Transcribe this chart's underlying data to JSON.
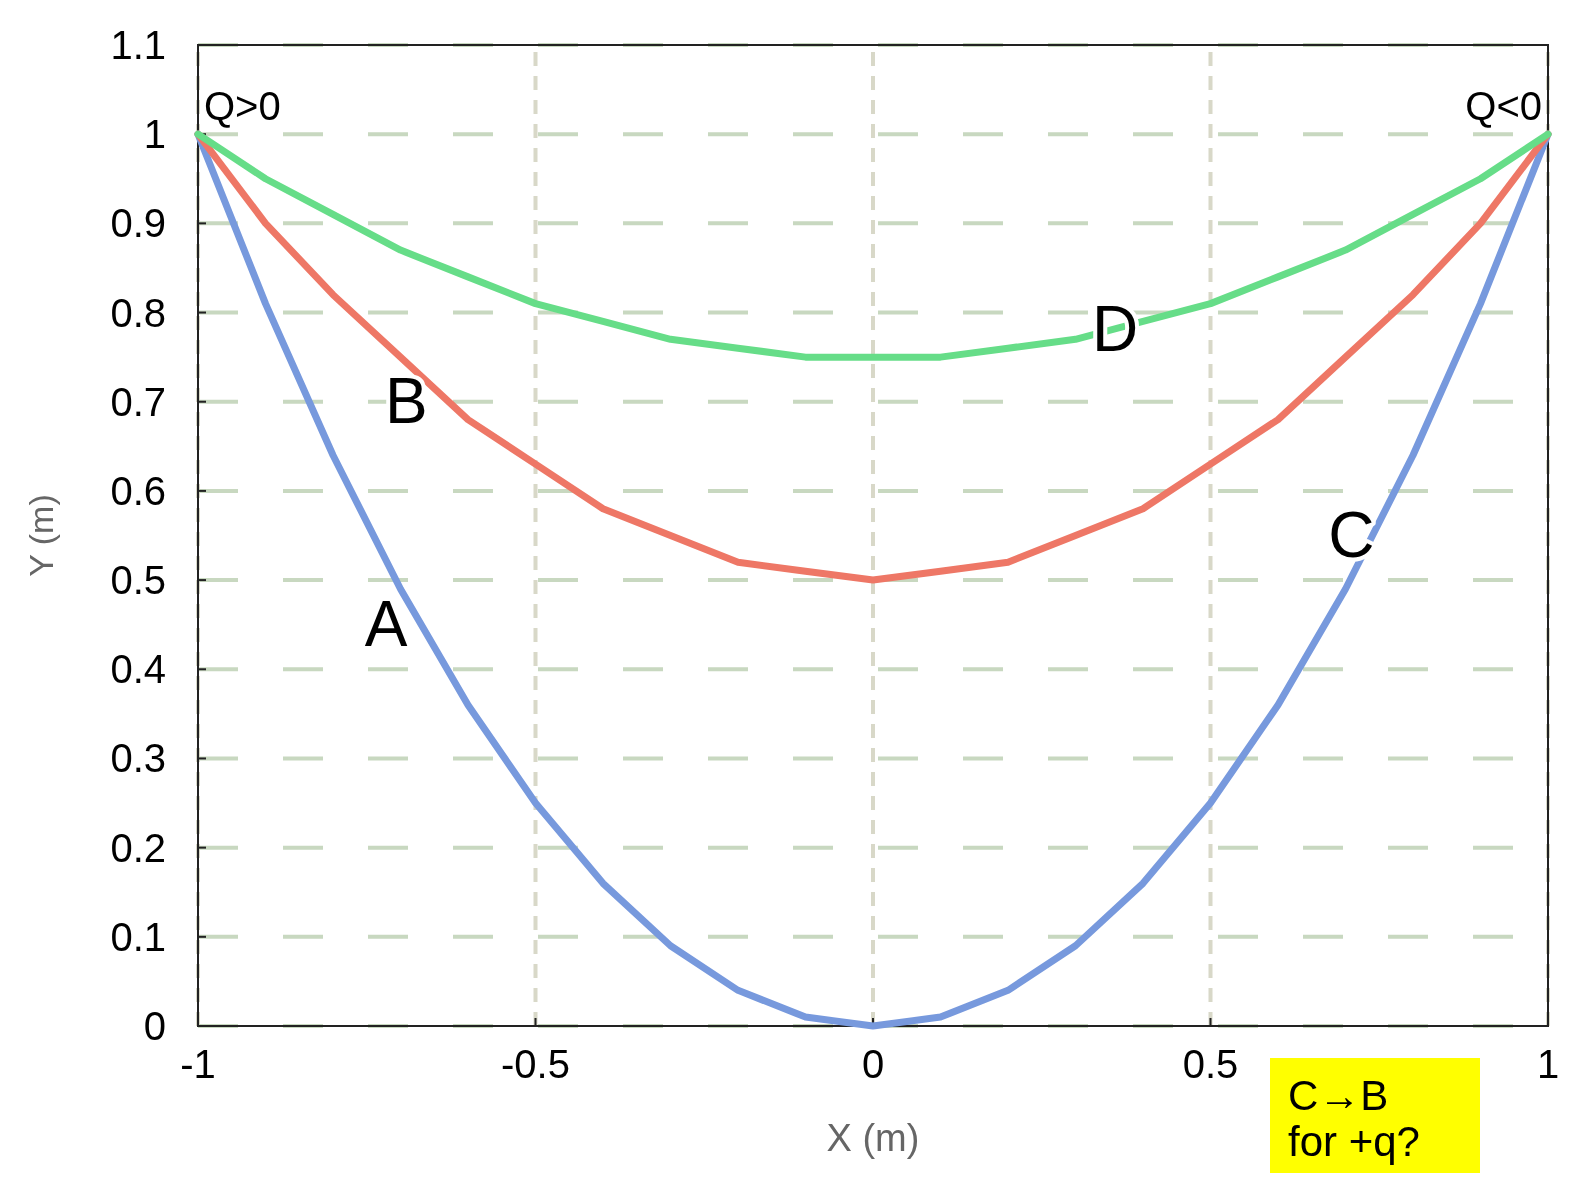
{
  "chart_data": {
    "type": "line",
    "xlabel": "X (m)",
    "ylabel": "Y (m)",
    "x": [
      -1,
      -0.9,
      -0.8,
      -0.7,
      -0.6,
      -0.5,
      -0.4,
      -0.3,
      -0.2,
      -0.1,
      0,
      0.1,
      0.2,
      0.3,
      0.4,
      0.5,
      0.6,
      0.7,
      0.8,
      0.9,
      1
    ],
    "series": [
      {
        "color": "#7799dd",
        "values": [
          1,
          0.81,
          0.64,
          0.49,
          0.36,
          0.25,
          0.16,
          0.09,
          0.04,
          0.01,
          0,
          0.01,
          0.04,
          0.09,
          0.16,
          0.25,
          0.36,
          0.49,
          0.64,
          0.81,
          1
        ]
      },
      {
        "color": "#ee7766",
        "values": [
          1,
          0.9,
          0.82,
          0.75,
          0.68,
          0.63,
          0.58,
          0.55,
          0.52,
          0.51,
          0.5,
          0.51,
          0.52,
          0.55,
          0.58,
          0.63,
          0.68,
          0.75,
          0.82,
          0.9,
          1
        ]
      },
      {
        "color": "#66dd88",
        "values": [
          1,
          0.95,
          0.91,
          0.87,
          0.84,
          0.81,
          0.79,
          0.77,
          0.76,
          0.75,
          0.75,
          0.75,
          0.76,
          0.77,
          0.79,
          0.81,
          0.84,
          0.87,
          0.91,
          0.95,
          1
        ]
      }
    ],
    "xlim": [
      -1,
      1
    ],
    "ylim": [
      0,
      1.1
    ],
    "xticks": [
      -1,
      -0.5,
      0,
      0.5,
      1
    ],
    "yticks": [
      0,
      0.1,
      0.2,
      0.3,
      0.4,
      0.5,
      0.6,
      0.7,
      0.8,
      0.9,
      1,
      1.1
    ],
    "grid": true,
    "marker": "none",
    "line_style": "solid",
    "annotations": [
      {
        "text": "Q>0",
        "x": -1,
        "y": 1
      },
      {
        "text": "Q<0",
        "x": 1,
        "y": 1
      },
      {
        "text": "A",
        "x": -0.68,
        "y": 0.46
      },
      {
        "text": "B",
        "x": -0.65,
        "y": 0.71
      },
      {
        "text": "C",
        "x": 0.75,
        "y": 0.56
      },
      {
        "text": "D",
        "x": 0.4,
        "y": 0.79
      },
      "C→B for +q?"
    ]
  }
}
